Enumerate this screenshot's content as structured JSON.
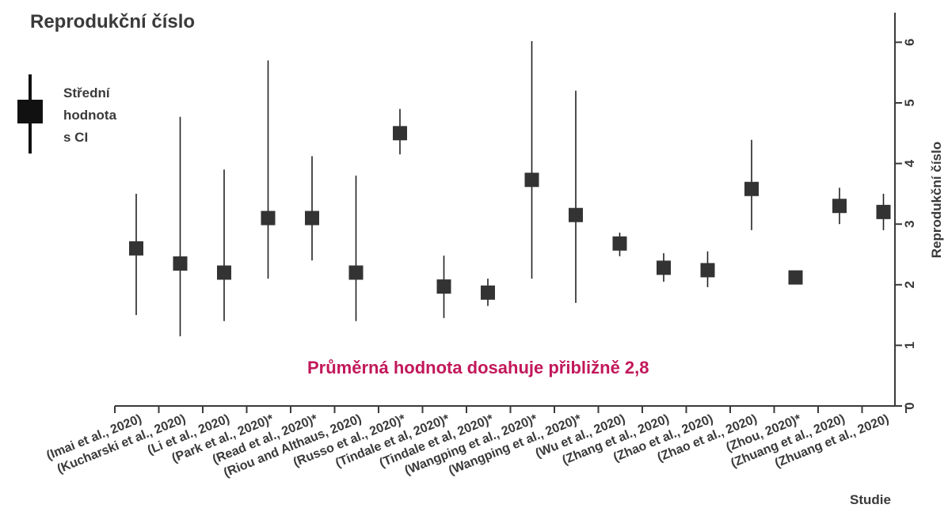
{
  "chart_data": {
    "type": "scatter",
    "title": "Reprodukční číslo",
    "ylabel": "Reprodukční číslo",
    "xlabel": "Studie",
    "ylim": [
      0,
      6.5
    ],
    "yticks": [
      "0",
      "1",
      "2",
      "3",
      "4",
      "5",
      "6"
    ],
    "legend": {
      "lines": [
        "Střední",
        "hodnota",
        "s CI"
      ],
      "placement": "top-left"
    },
    "annotation": "Průměrná hodnota dosahuje přibližně 2,8",
    "mark_color": "#333333",
    "annotation_color": "#c2185b",
    "categories": [
      "(Imai et al., 2020)",
      "(Kucharski et al., 2020)",
      "(Li et al., 2020)",
      "(Park et al., 2020)*",
      "(Read et al., 2020)*",
      "(Riou and Althaus, 2020)",
      "(Russo et al., 2020)*",
      "(Tindale et al, 2020)*",
      "(Tindale et al, 2020)*",
      "(Wangping et al., 2020)*",
      "(Wangping et al., 2020)*",
      "(Wu et al., 2020)",
      "(Zhang et al., 2020)",
      "(Zhao et al., 2020)",
      "(Zhao et al., 2020)",
      "(Zhou, 2020)*",
      "(Zhuang et al., 2020)",
      "(Zhuang et al., 2020)"
    ],
    "values": [
      2.6,
      2.35,
      2.2,
      3.1,
      3.1,
      2.2,
      4.5,
      1.97,
      1.87,
      3.73,
      3.15,
      2.68,
      2.28,
      2.24,
      3.58,
      2.12,
      3.3,
      3.2
    ],
    "ci_low": [
      1.5,
      1.15,
      1.4,
      2.1,
      2.4,
      1.4,
      4.15,
      1.45,
      1.65,
      2.1,
      1.7,
      2.47,
      2.05,
      1.96,
      2.9,
      2.12,
      3.0,
      2.9
    ],
    "ci_high": [
      3.5,
      4.77,
      3.9,
      5.7,
      4.12,
      3.8,
      4.9,
      2.48,
      2.1,
      6.02,
      5.2,
      2.86,
      2.52,
      2.55,
      4.39,
      2.12,
      3.6,
      3.5
    ]
  }
}
